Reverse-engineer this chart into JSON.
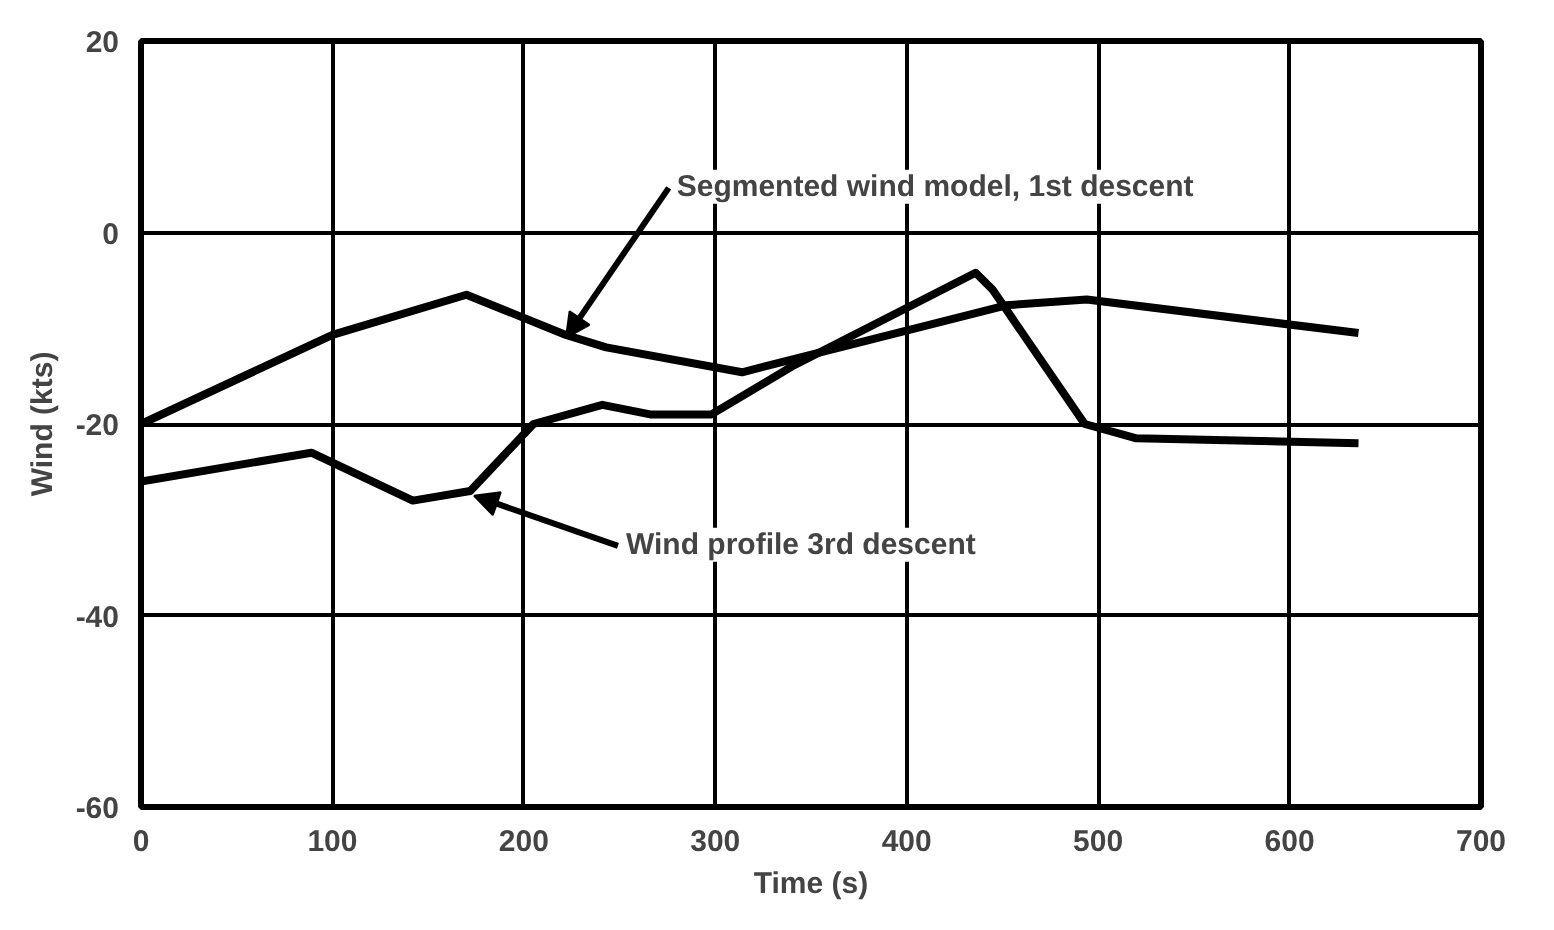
{
  "chart_data": {
    "type": "line",
    "xlabel": "Time (s)",
    "ylabel": "Wind (kts)",
    "xlim": [
      0,
      700
    ],
    "ylim": [
      -60,
      20
    ],
    "xticks": [
      0,
      100,
      200,
      300,
      400,
      500,
      600,
      700
    ],
    "yticks": [
      -60,
      -40,
      -20,
      0,
      20
    ],
    "grid": true,
    "series": [
      {
        "color": "#000000",
        "x": [
          0,
          100,
          170,
          222,
          243,
          314,
          452,
          494,
          636
        ],
        "values": [
          -20,
          -10.7,
          -6.5,
          -10.7,
          -12,
          -14.6,
          -7.6,
          -7,
          -10.5
        ]
      },
      {
        "color": "#000000",
        "x": [
          0,
          89,
          142,
          172,
          205,
          241,
          266,
          298,
          340,
          436,
          445,
          493,
          520,
          636
        ],
        "values": [
          -26,
          -23,
          -28,
          -27,
          -20,
          -18,
          -19,
          -19,
          -14,
          -4.2,
          -6,
          -20,
          -21.5,
          -22
        ]
      }
    ],
    "annotations": [
      {
        "text": "Segmented wind model, 1st descent",
        "x": 222,
        "y": -11
      },
      {
        "text": "Wind profile 3rd descent",
        "x": 174,
        "y": -27.5
      }
    ]
  }
}
